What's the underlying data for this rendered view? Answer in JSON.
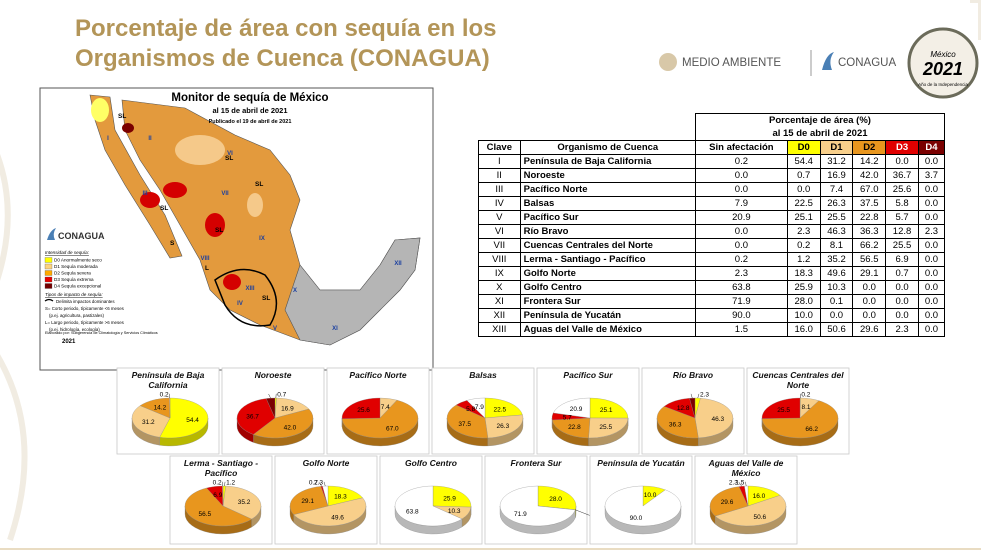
{
  "header": {
    "title": [
      "Porcentaje de área con sequía en los",
      "Organismos de Cuenca (CONAGUA)"
    ],
    "logo_semarnat": "MEDIO AMBIENTE",
    "logo_conagua": "CONAGUA",
    "emblem_country": "México",
    "emblem_year": "2021",
    "emblem_text": "Año de la Independencia"
  },
  "map": {
    "title": "Monitor de sequía de México",
    "date": "al 15 de abril de 2021",
    "published": "Publicado el 19 de abril de 2021",
    "logo": "CONAGUA",
    "legend_title": "Intensidad de sequía:",
    "legend": [
      "D0 Anormalmente seco",
      "D1 Sequía moderada",
      "D2 Sequía severa",
      "D3 Sequía extrema",
      "D4 Sequía excepcional"
    ],
    "legend_colors": [
      "#ffff00",
      "#fcd37f",
      "#ffaa00",
      "#e60000",
      "#730000"
    ],
    "impact_title": "Tipos de impacto de sequía:",
    "impact_items": [
      "Delimita impactos dominantes",
      "S= Corto periodo, típicamente <6 meses",
      "(p.ej. agricultura, pastizales)",
      "L= Largo periodo, típicamente >6 meses",
      "(p.ej. hidrología, ecología)"
    ],
    "source": "Elaborado por: Subgerencia de Climatología y Servicios Climáticos",
    "year": "2021",
    "region_labels": [
      "I",
      "II",
      "III",
      "IV",
      "V",
      "VI",
      "VII",
      "VIII",
      "IX",
      "X",
      "XI",
      "XII",
      "XIII"
    ],
    "impact_labels": [
      "SL",
      "SL",
      "SL",
      "SL",
      "SL",
      "S",
      "SL",
      "L"
    ]
  },
  "table": {
    "group_header": "Porcentaje de área (%)",
    "group_subheader": "al 15 de abril de 2021",
    "columns": [
      "Clave",
      "Organismo de Cuenca",
      "Sin afectación",
      "D0",
      "D1",
      "D2",
      "D3",
      "D4"
    ],
    "column_colors": [
      "#ffffff",
      "#ffffff",
      "#ffffff",
      "#ffff00",
      "#f8cf8a",
      "#e8961e",
      "#e00000",
      "#7a0000"
    ],
    "rows": [
      [
        "I",
        "Península de Baja California",
        "0.2",
        "54.4",
        "31.2",
        "14.2",
        "0.0",
        "0.0"
      ],
      [
        "II",
        "Noroeste",
        "0.0",
        "0.7",
        "16.9",
        "42.0",
        "36.7",
        "3.7"
      ],
      [
        "III",
        "Pacífico Norte",
        "0.0",
        "0.0",
        "7.4",
        "67.0",
        "25.6",
        "0.0"
      ],
      [
        "IV",
        "Balsas",
        "7.9",
        "22.5",
        "26.3",
        "37.5",
        "5.8",
        "0.0"
      ],
      [
        "V",
        "Pacífico Sur",
        "20.9",
        "25.1",
        "25.5",
        "22.8",
        "5.7",
        "0.0"
      ],
      [
        "VI",
        "Río Bravo",
        "0.0",
        "2.3",
        "46.3",
        "36.3",
        "12.8",
        "2.3"
      ],
      [
        "VII",
        "Cuencas Centrales del Norte",
        "0.0",
        "0.2",
        "8.1",
        "66.2",
        "25.5",
        "0.0"
      ],
      [
        "VIII",
        "Lerma - Santiago - Pacífico",
        "0.2",
        "1.2",
        "35.2",
        "56.5",
        "6.9",
        "0.0"
      ],
      [
        "IX",
        "Golfo Norte",
        "2.3",
        "18.3",
        "49.6",
        "29.1",
        "0.7",
        "0.0"
      ],
      [
        "X",
        "Golfo Centro",
        "63.8",
        "25.9",
        "10.3",
        "0.0",
        "0.0",
        "0.0"
      ],
      [
        "XI",
        "Frontera Sur",
        "71.9",
        "28.0",
        "0.1",
        "0.0",
        "0.0",
        "0.0"
      ],
      [
        "XII",
        "Península de Yucatán",
        "90.0",
        "10.0",
        "0.0",
        "0.0",
        "0.0",
        "0.0"
      ],
      [
        "XIII",
        "Aguas del Valle de México",
        "1.5",
        "16.0",
        "50.6",
        "29.6",
        "2.3",
        "0.0"
      ]
    ]
  },
  "chart_data": [
    {
      "type": "pie",
      "title": "Península de Baja California",
      "values": [
        0.2,
        54.4,
        31.2,
        14.2,
        0,
        0
      ],
      "value_labels": [
        "0.2",
        "54.4",
        "31.2",
        "14.2",
        null,
        null
      ],
      "colors": [
        "#ffffff",
        "#ffff00",
        "#f8cf8a",
        "#e8961e",
        "#e00000",
        "#7a0000"
      ]
    },
    {
      "type": "pie",
      "title": "Noroeste",
      "values": [
        0,
        0.7,
        16.9,
        42.0,
        36.7,
        3.7
      ],
      "value_labels": [
        null,
        "0.7",
        "16.9",
        "42.0",
        "36.7",
        "3.7"
      ],
      "colors": [
        "#ffffff",
        "#ffff00",
        "#f8cf8a",
        "#e8961e",
        "#e00000",
        "#7a0000"
      ]
    },
    {
      "type": "pie",
      "title": "Pacífico Norte",
      "values": [
        0,
        0,
        7.4,
        67.0,
        25.6,
        0
      ],
      "value_labels": [
        null,
        null,
        "7.4",
        "67.0",
        "25.6",
        null
      ],
      "colors": [
        "#ffffff",
        "#ffff00",
        "#f8cf8a",
        "#e8961e",
        "#e00000",
        "#7a0000"
      ]
    },
    {
      "type": "pie",
      "title": "Balsas",
      "values": [
        7.9,
        22.5,
        26.3,
        37.5,
        5.8,
        0
      ],
      "value_labels": [
        "7.9",
        "22.5",
        "26.3",
        "37.5",
        "5.8",
        null
      ],
      "colors": [
        "#ffffff",
        "#ffff00",
        "#f8cf8a",
        "#e8961e",
        "#e00000",
        "#7a0000"
      ]
    },
    {
      "type": "pie",
      "title": "Pacífico Sur",
      "values": [
        20.9,
        25.1,
        25.5,
        22.8,
        5.7,
        0
      ],
      "value_labels": [
        "20.9",
        "25.1",
        "25.5",
        "22.8",
        "5.7",
        null
      ],
      "colors": [
        "#ffffff",
        "#ffff00",
        "#f8cf8a",
        "#e8961e",
        "#e00000",
        "#7a0000"
      ]
    },
    {
      "type": "pie",
      "title": "Río Bravo",
      "values": [
        0,
        2.3,
        46.3,
        36.3,
        12.8,
        2.3
      ],
      "value_labels": [
        null,
        "2.3",
        "46.3",
        "36.3",
        "12.8",
        "2.3"
      ],
      "colors": [
        "#ffffff",
        "#ffff00",
        "#f8cf8a",
        "#e8961e",
        "#e00000",
        "#7a0000"
      ]
    },
    {
      "type": "pie",
      "title": "Cuencas Centrales del Norte",
      "values": [
        0,
        0.2,
        8.1,
        66.2,
        25.5,
        0
      ],
      "value_labels": [
        null,
        "0.2",
        "8.1",
        "66.2",
        "25.5",
        null
      ],
      "colors": [
        "#ffffff",
        "#ffff00",
        "#f8cf8a",
        "#e8961e",
        "#e00000",
        "#7a0000"
      ]
    },
    {
      "type": "pie",
      "title": "Lerma - Santiago - Pacífico",
      "values": [
        0.2,
        1.2,
        35.2,
        56.5,
        6.9,
        0
      ],
      "value_labels": [
        "0.2",
        "1.2",
        "35.2",
        "56.5",
        "6.9",
        null
      ],
      "colors": [
        "#ffffff",
        "#ffff00",
        "#f8cf8a",
        "#e8961e",
        "#e00000",
        "#7a0000"
      ]
    },
    {
      "type": "pie",
      "title": "Golfo Norte",
      "values": [
        2.3,
        18.3,
        49.6,
        29.1,
        0.7,
        0
      ],
      "value_labels": [
        "2.3",
        "18.3",
        "49.6",
        "29.1",
        "0.7",
        null
      ],
      "colors": [
        "#ffffff",
        "#ffff00",
        "#f8cf8a",
        "#e8961e",
        "#e00000",
        "#7a0000"
      ]
    },
    {
      "type": "pie",
      "title": "Golfo Centro",
      "values": [
        63.8,
        25.9,
        10.3,
        0,
        0,
        0
      ],
      "value_labels": [
        "63.8",
        "25.9",
        "10.3",
        null,
        null,
        null
      ],
      "colors": [
        "#ffffff",
        "#ffff00",
        "#f8cf8a",
        "#e8961e",
        "#e00000",
        "#7a0000"
      ]
    },
    {
      "type": "pie",
      "title": "Frontera Sur",
      "values": [
        71.9,
        28.0,
        0.1,
        0,
        0,
        0
      ],
      "value_labels": [
        "71.9",
        "28.0",
        "0.1",
        null,
        null,
        null
      ],
      "colors": [
        "#ffffff",
        "#ffff00",
        "#f8cf8a",
        "#e8961e",
        "#e00000",
        "#7a0000"
      ]
    },
    {
      "type": "pie",
      "title": "Península de Yucatán",
      "values": [
        90.0,
        10.0,
        0,
        0,
        0,
        0
      ],
      "value_labels": [
        "90.0",
        "10.0",
        null,
        null,
        null,
        null
      ],
      "colors": [
        "#ffffff",
        "#ffff00",
        "#f8cf8a",
        "#e8961e",
        "#e00000",
        "#7a0000"
      ]
    },
    {
      "type": "pie",
      "title": "Aguas del Valle de México",
      "values": [
        1.5,
        16.0,
        50.6,
        29.6,
        2.3,
        0
      ],
      "value_labels": [
        "1.5",
        "16.0",
        "50.6",
        "29.6",
        "2.3",
        null
      ],
      "colors": [
        "#ffffff",
        "#ffff00",
        "#f8cf8a",
        "#e8961e",
        "#e00000",
        "#7a0000"
      ]
    }
  ]
}
